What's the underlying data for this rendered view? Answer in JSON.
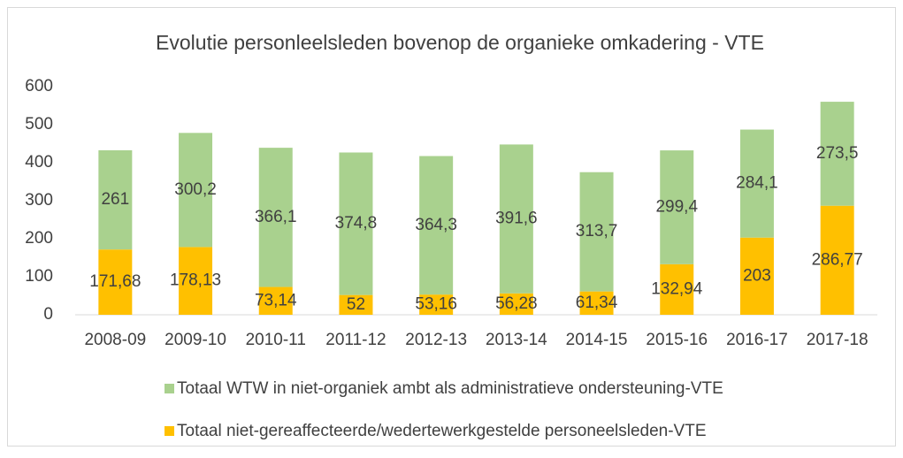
{
  "chart_data": {
    "type": "stacked_bar",
    "title": "Evolutie personleelsleden bovenop de organieke omkadering - VTE",
    "categories": [
      "2008-09",
      "2009-10",
      "2010-11",
      "2011-12",
      "2012-13",
      "2013-14",
      "2014-15",
      "2015-16",
      "2016-17",
      "2017-18"
    ],
    "series": [
      {
        "name": "Totaal niet-gereaffecteerde/wedertewerkgestelde personeelsleden-VTE",
        "color": "#ffc000",
        "values": [
          171.68,
          178.13,
          73.14,
          52,
          53.16,
          56.28,
          61.34,
          132.94,
          203,
          286.77
        ],
        "value_labels": [
          "171,68",
          "178,13",
          "73,14",
          "52",
          "53,16",
          "56,28",
          "61,34",
          "132,94",
          "203",
          "286,77"
        ]
      },
      {
        "name": "Totaal WTW in niet-organiek ambt als administratieve ondersteuning-VTE",
        "color": "#a9d18e",
        "values": [
          261,
          300.2,
          366.1,
          374.8,
          364.3,
          391.6,
          313.7,
          299.4,
          284.1,
          273.5
        ],
        "value_labels": [
          "261",
          "300,2",
          "366,1",
          "374,8",
          "364,3",
          "391,6",
          "313,7",
          "299,4",
          "284,1",
          "273,5"
        ]
      }
    ],
    "ylim": [
      0,
      600
    ],
    "yticks": [
      0,
      100,
      200,
      300,
      400,
      500,
      600
    ],
    "grid": false,
    "legend": "bottom"
  }
}
